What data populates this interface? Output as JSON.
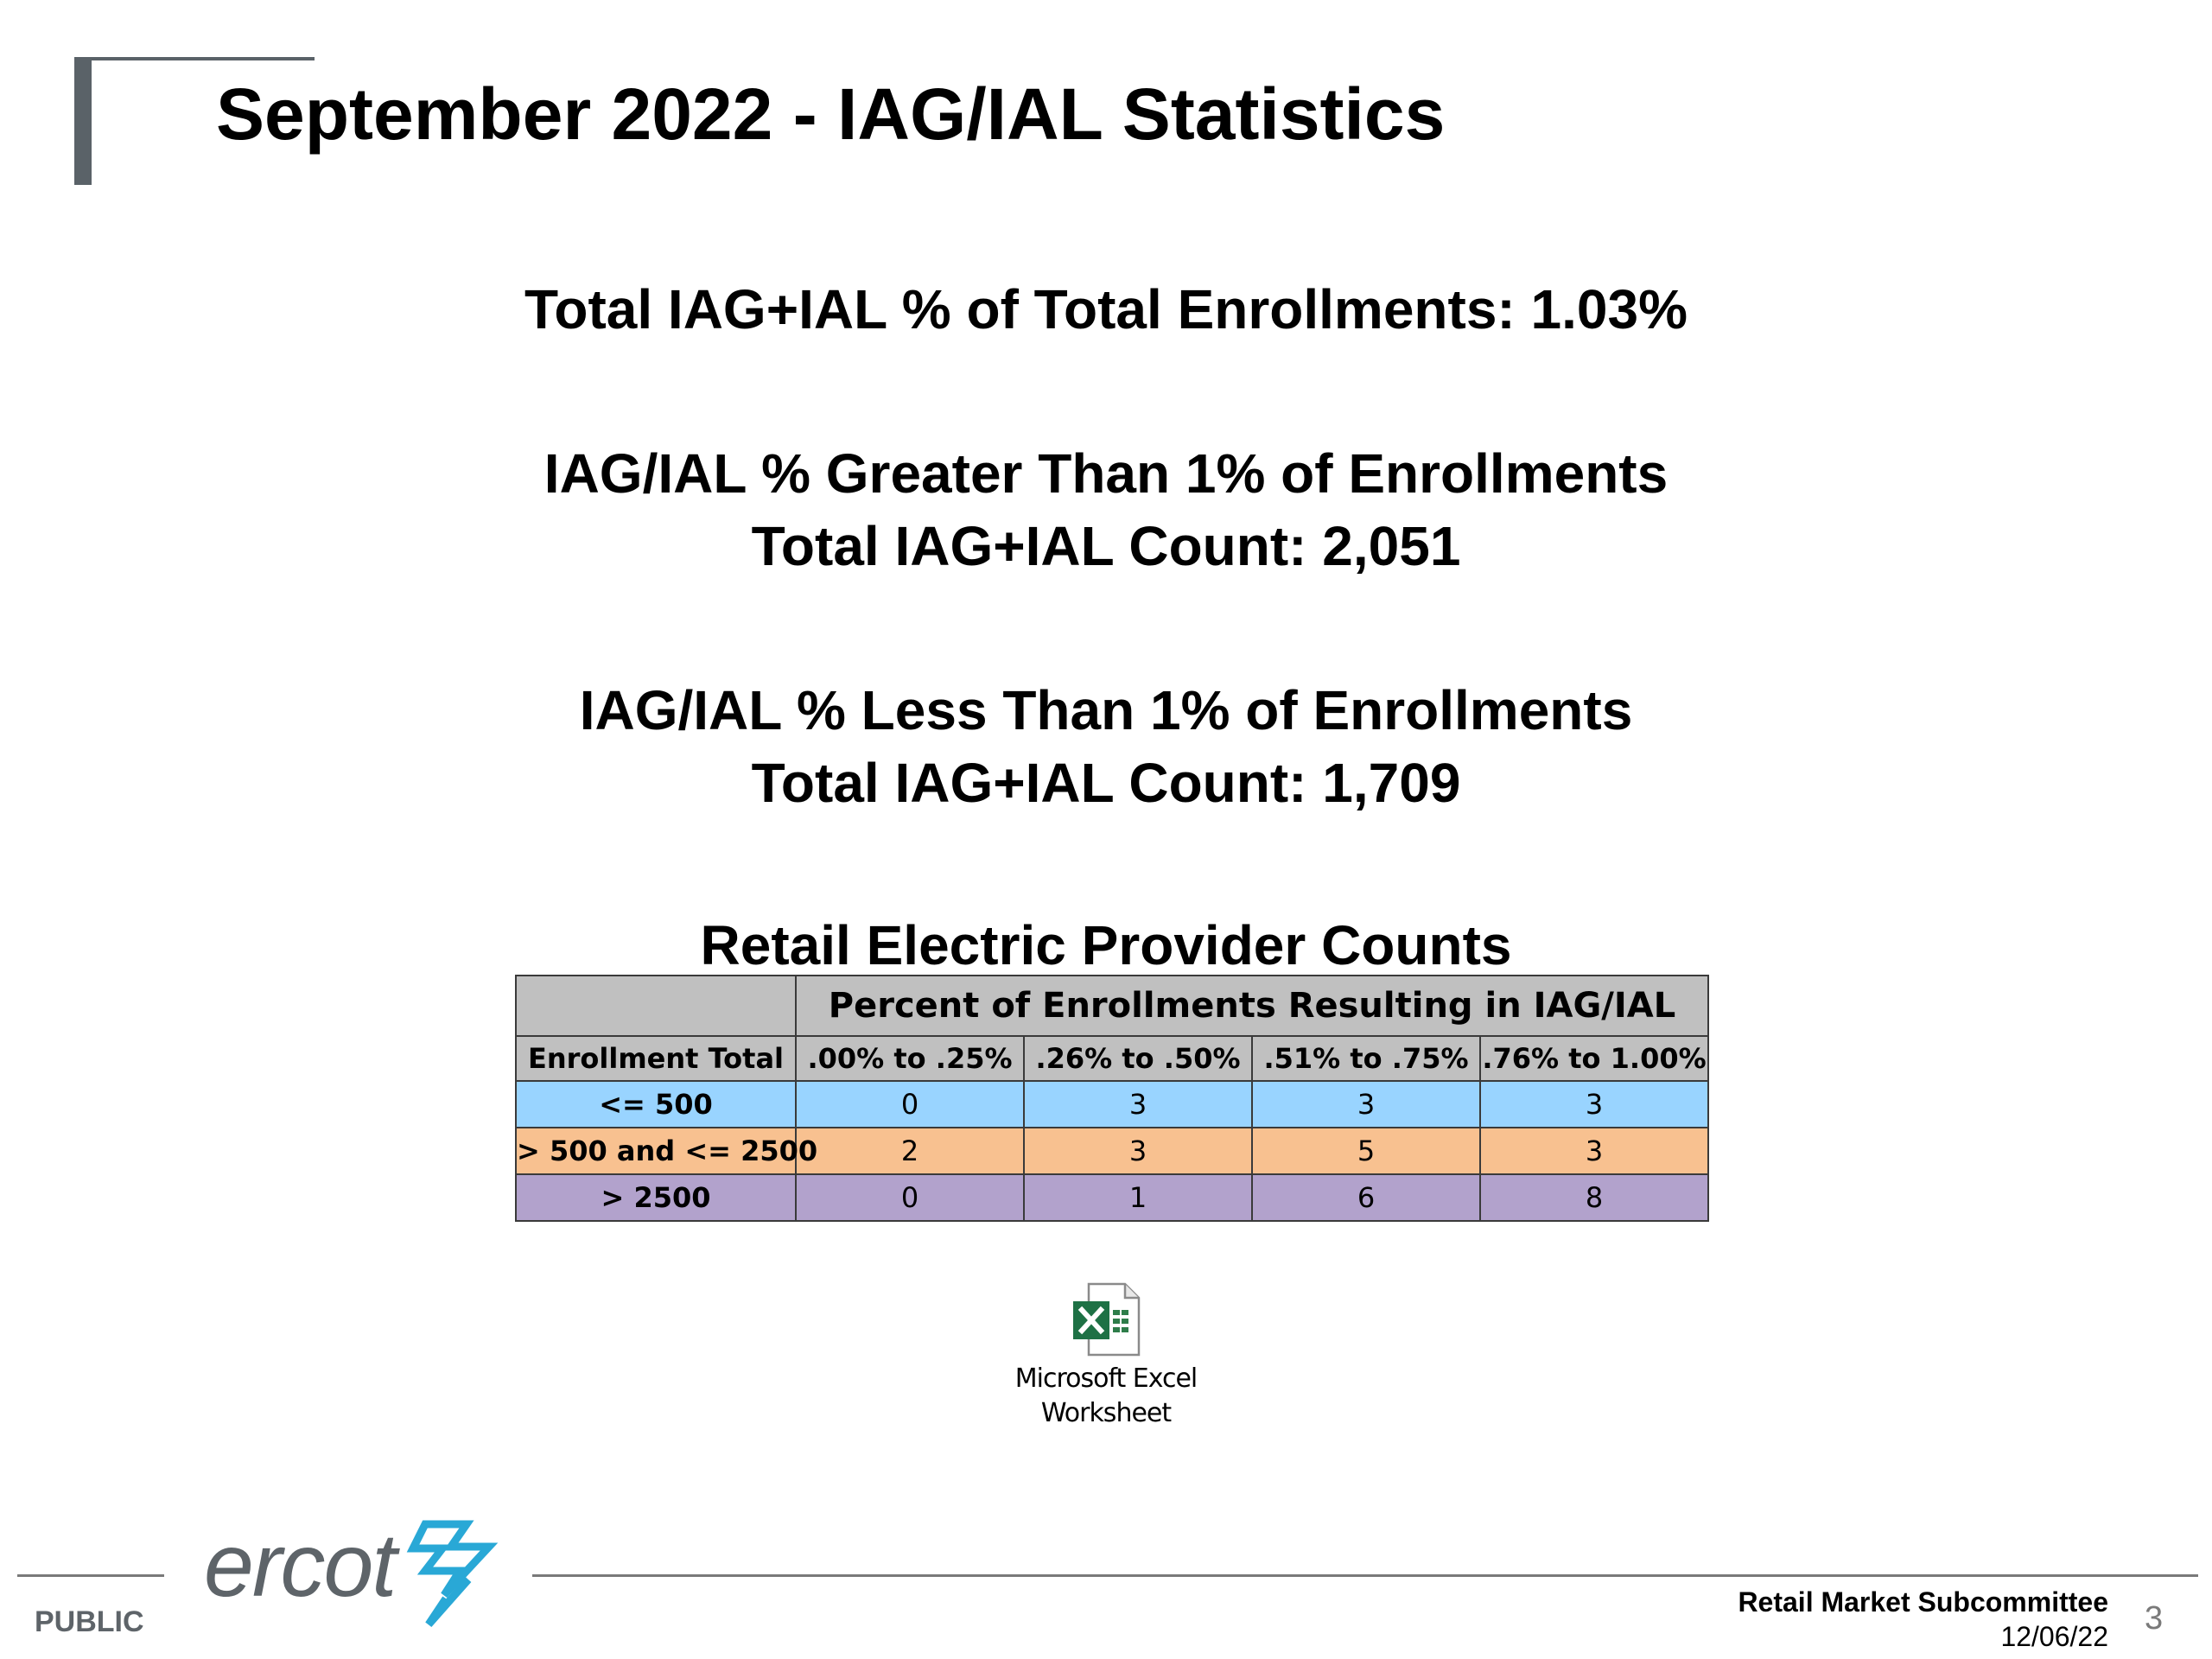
{
  "slide": {
    "title": "September 2022 - IAG/IAL Statistics"
  },
  "stats": {
    "total_pct": "Total IAG+IAL % of Total Enrollments: 1.03%",
    "greater_heading": "IAG/IAL % Greater Than 1% of Enrollments",
    "greater_count": "Total IAG+IAL Count: 2,051",
    "less_heading": "IAG/IAL % Less Than 1% of Enrollments",
    "less_count": "Total IAG+IAL Count: 1,709"
  },
  "table": {
    "title": "Retail Electric Provider Counts",
    "banner": "Percent of Enrollments Resulting in IAG/IAL",
    "headers": [
      "Enrollment Total",
      ".00% to .25%",
      ".26% to .50%",
      ".51% to .75%",
      ".76% to 1.00%"
    ],
    "rows": [
      {
        "label": "<= 500",
        "values": [
          "0",
          "3",
          "3",
          "3"
        ],
        "color": "#99d4ff"
      },
      {
        "label": "> 500 and <= 2500",
        "values": [
          "2",
          "3",
          "5",
          "3"
        ],
        "color": "#f8c190"
      },
      {
        "label": "> 2500",
        "values": [
          "0",
          "1",
          "6",
          "8"
        ],
        "color": "#b2a2cc"
      }
    ]
  },
  "attachment": {
    "icon": "excel-file-icon",
    "caption_line1": "Microsoft Excel",
    "caption_line2": "Worksheet"
  },
  "footer": {
    "logo_text": "ercot",
    "classification": "PUBLIC",
    "meeting": "Retail Market Subcommittee",
    "date": "12/06/22",
    "page_number": "3"
  },
  "colors": {
    "accent_gray": "#5a6268",
    "logo_blue": "#29a8d6"
  }
}
